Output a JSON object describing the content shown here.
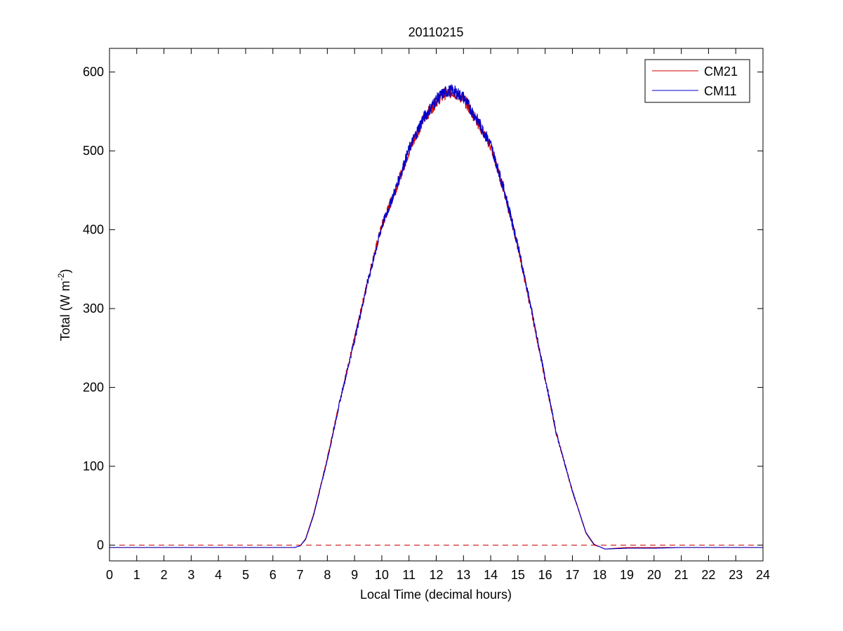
{
  "chart_data": {
    "type": "line",
    "title": "20110215",
    "xlabel": "Local Time (decimal hours)",
    "ylabel": {
      "prefix": "Total (W m",
      "sup": "-2",
      "suffix": ")"
    },
    "xlim": [
      0,
      24
    ],
    "ylim": [
      -20,
      630
    ],
    "xticks": [
      "0",
      "1",
      "2",
      "3",
      "4",
      "5",
      "6",
      "7",
      "8",
      "9",
      "10",
      "11",
      "12",
      "13",
      "14",
      "15",
      "16",
      "17",
      "18",
      "19",
      "20",
      "21",
      "22",
      "23",
      "24"
    ],
    "yticks": [
      "0",
      "100",
      "200",
      "300",
      "400",
      "500",
      "600"
    ],
    "grid": false,
    "legend_position": "top-right",
    "reference_line": {
      "y": 0,
      "color": "#cc0000",
      "style": "dashed"
    },
    "series": [
      {
        "name": "CM21",
        "color": "#cc0000",
        "points": [
          [
            0,
            -3
          ],
          [
            6.8,
            -3
          ],
          [
            7.0,
            -1
          ],
          [
            7.2,
            8
          ],
          [
            7.5,
            40
          ],
          [
            8.0,
            110
          ],
          [
            8.5,
            190
          ],
          [
            9.0,
            262
          ],
          [
            9.5,
            338
          ],
          [
            10.0,
            405
          ],
          [
            10.5,
            450
          ],
          [
            11.0,
            500
          ],
          [
            11.5,
            538
          ],
          [
            12.0,
            563
          ],
          [
            12.3,
            572
          ],
          [
            12.6,
            575
          ],
          [
            13.0,
            566
          ],
          [
            13.5,
            538
          ],
          [
            14.0,
            506
          ],
          [
            14.5,
            448
          ],
          [
            15.0,
            378
          ],
          [
            15.5,
            296
          ],
          [
            16.0,
            210
          ],
          [
            16.3,
            160
          ],
          [
            16.4,
            142
          ],
          [
            16.5,
            130
          ],
          [
            17.0,
            68
          ],
          [
            17.5,
            15
          ],
          [
            17.8,
            0
          ],
          [
            18.0,
            -2
          ],
          [
            18.2,
            -5
          ],
          [
            19.0,
            -3
          ],
          [
            20.0,
            -3
          ],
          [
            21.0,
            -3
          ],
          [
            22.0,
            -3
          ],
          [
            24.0,
            -3
          ]
        ]
      },
      {
        "name": "CM11",
        "color": "#0000cc",
        "points": [
          [
            0,
            -3
          ],
          [
            6.8,
            -3
          ],
          [
            7.0,
            -1
          ],
          [
            7.2,
            7
          ],
          [
            7.5,
            38
          ],
          [
            8.0,
            108
          ],
          [
            8.5,
            188
          ],
          [
            9.0,
            260
          ],
          [
            9.5,
            336
          ],
          [
            10.0,
            404
          ],
          [
            10.5,
            451
          ],
          [
            11.0,
            502
          ],
          [
            11.5,
            540
          ],
          [
            12.0,
            565
          ],
          [
            12.3,
            574
          ],
          [
            12.6,
            577
          ],
          [
            13.0,
            568
          ],
          [
            13.5,
            540
          ],
          [
            14.0,
            508
          ],
          [
            14.5,
            450
          ],
          [
            15.0,
            380
          ],
          [
            15.5,
            298
          ],
          [
            16.0,
            212
          ],
          [
            16.3,
            162
          ],
          [
            16.4,
            144
          ],
          [
            16.5,
            131
          ],
          [
            17.0,
            69
          ],
          [
            17.5,
            16
          ],
          [
            17.8,
            1
          ],
          [
            18.0,
            -2
          ],
          [
            18.2,
            -5
          ],
          [
            19.0,
            -4
          ],
          [
            20.0,
            -4
          ],
          [
            21.0,
            -3
          ],
          [
            22.0,
            -3
          ],
          [
            24.0,
            -3
          ]
        ]
      }
    ]
  }
}
